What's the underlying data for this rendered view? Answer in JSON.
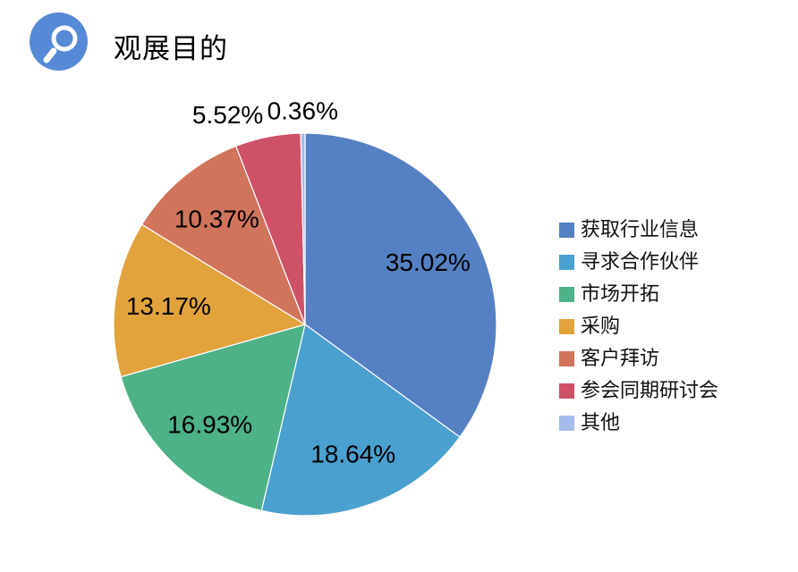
{
  "header": {
    "title": "观展目的",
    "icon": "magnifier-icon",
    "icon_bg_color": "#568AD6",
    "icon_glyph_color": "#ffffff"
  },
  "chart_data": {
    "type": "pie",
    "title": "观展目的",
    "start_angle_deg": 0,
    "direction": "clockwise",
    "legend_position": "right",
    "label_color": "#000000",
    "slice_border_color": "#ffffff",
    "slices": [
      {
        "label": "获取行业信息",
        "value": 35.02,
        "pct_label": "35.02%",
        "color": "#5581C4"
      },
      {
        "label": "寻求合作伙伴",
        "value": 18.64,
        "pct_label": "18.64%",
        "color": "#4AA0CE"
      },
      {
        "label": "市场开拓",
        "value": 16.93,
        "pct_label": "16.93%",
        "color": "#4DB287"
      },
      {
        "label": "采购",
        "value": 13.17,
        "pct_label": "13.17%",
        "color": "#E2A33D"
      },
      {
        "label": "客户拜访",
        "value": 10.37,
        "pct_label": "10.37%",
        "color": "#D0745C"
      },
      {
        "label": "参会同期研讨会",
        "value": 5.52,
        "pct_label": "5.52%",
        "color": "#CE5168"
      },
      {
        "label": "其他",
        "value": 0.36,
        "pct_label": "0.36%",
        "color": "#A4BCEA"
      }
    ]
  }
}
